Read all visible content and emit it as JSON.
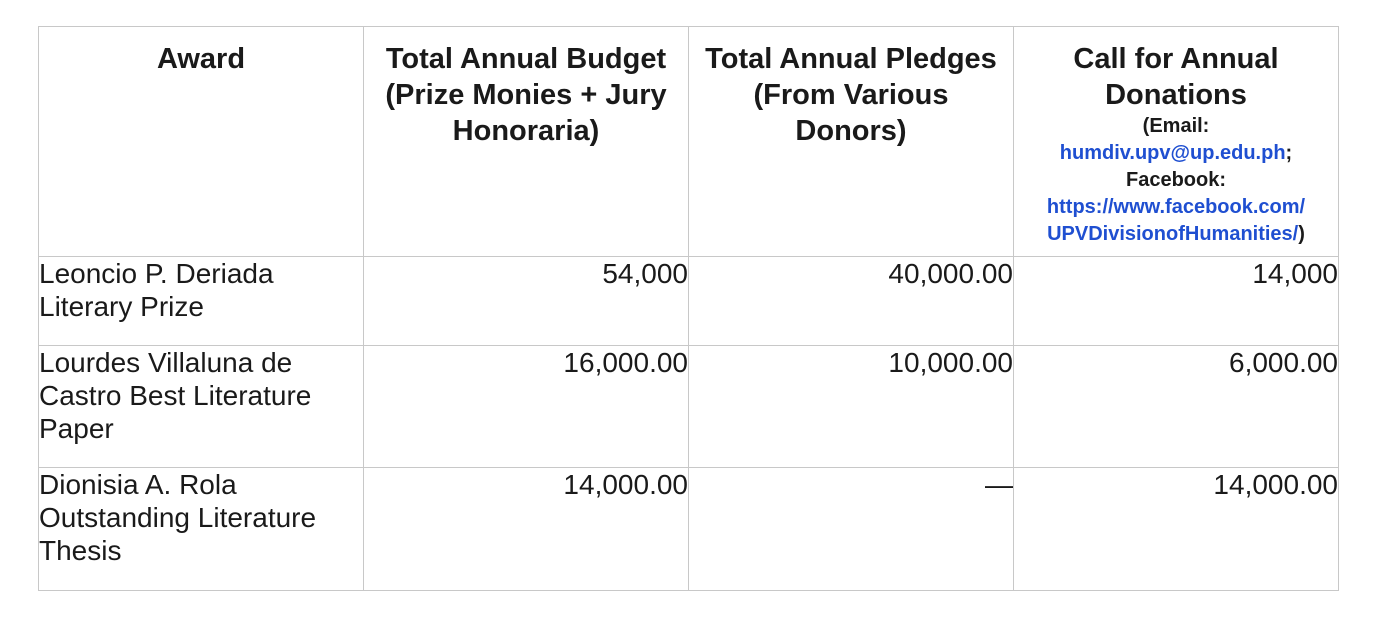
{
  "headers": {
    "award": "Award",
    "budget": "Total Annual Budget (Prize Monies + Jury Honoraria)",
    "pledges": "Total Annual Pledges (From Various Donors)",
    "donations_title": "Call for Annual Donations",
    "donations_email_prefix": "(Email:",
    "donations_email": "humdiv.upv@up.edu.ph",
    "donations_email_suffix": ";",
    "donations_facebook_label": "Facebook:",
    "donations_facebook_url_1": "https://www.facebook.com/",
    "donations_facebook_url_2": "UPVDivisionofHumanities/",
    "donations_close": ")"
  },
  "rows": [
    {
      "award": "Leoncio P. Deriada Literary Prize",
      "budget": "54,000",
      "pledges": "40,000.00",
      "donations": "14,000"
    },
    {
      "award": "Lourdes Villaluna de Castro Best Literature Paper",
      "budget": "16,000.00",
      "pledges": "10,000.00",
      "donations": "6,000.00"
    },
    {
      "award": "Dionisia A. Rola Outstanding Literature Thesis",
      "budget": "14,000.00",
      "pledges": "—",
      "donations": "14,000.00"
    }
  ]
}
